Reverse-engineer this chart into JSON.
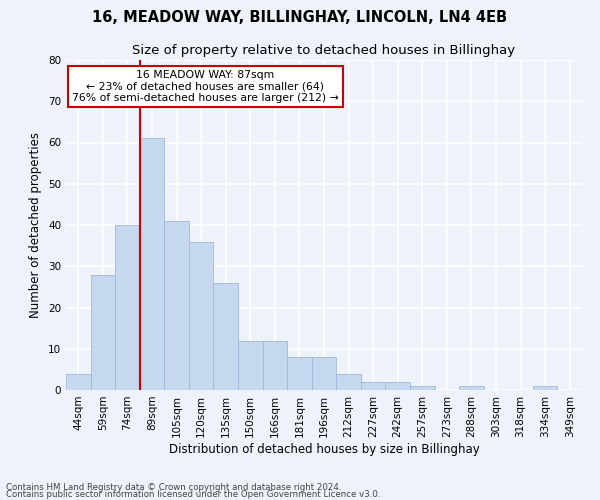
{
  "title": "16, MEADOW WAY, BILLINGHAY, LINCOLN, LN4 4EB",
  "subtitle": "Size of property relative to detached houses in Billinghay",
  "xlabel": "Distribution of detached houses by size in Billinghay",
  "ylabel": "Number of detached properties",
  "categories": [
    "44sqm",
    "59sqm",
    "74sqm",
    "89sqm",
    "105sqm",
    "120sqm",
    "135sqm",
    "150sqm",
    "166sqm",
    "181sqm",
    "196sqm",
    "212sqm",
    "227sqm",
    "242sqm",
    "257sqm",
    "273sqm",
    "288sqm",
    "303sqm",
    "318sqm",
    "334sqm",
    "349sqm"
  ],
  "values": [
    4,
    28,
    40,
    61,
    41,
    36,
    26,
    12,
    12,
    8,
    8,
    4,
    2,
    2,
    1,
    0,
    1,
    0,
    0,
    1,
    0
  ],
  "bar_color": "#c5d8f0",
  "bar_edge_color": "#a0b8d8",
  "ylim": [
    0,
    80
  ],
  "yticks": [
    0,
    10,
    20,
    30,
    40,
    50,
    60,
    70,
    80
  ],
  "redline_index": 3,
  "annotation_text": "16 MEADOW WAY: 87sqm\n← 23% of detached houses are smaller (64)\n76% of semi-detached houses are larger (212) →",
  "annotation_box_color": "#ffffff",
  "annotation_box_edge_color": "#cc0000",
  "footer1": "Contains HM Land Registry data © Crown copyright and database right 2024.",
  "footer2": "Contains public sector information licensed under the Open Government Licence v3.0.",
  "background_color": "#eef2fa",
  "grid_color": "#ffffff",
  "title_fontsize": 10.5,
  "subtitle_fontsize": 9.5,
  "tick_fontsize": 7.5,
  "label_fontsize": 8.5,
  "footer_fontsize": 6.2
}
